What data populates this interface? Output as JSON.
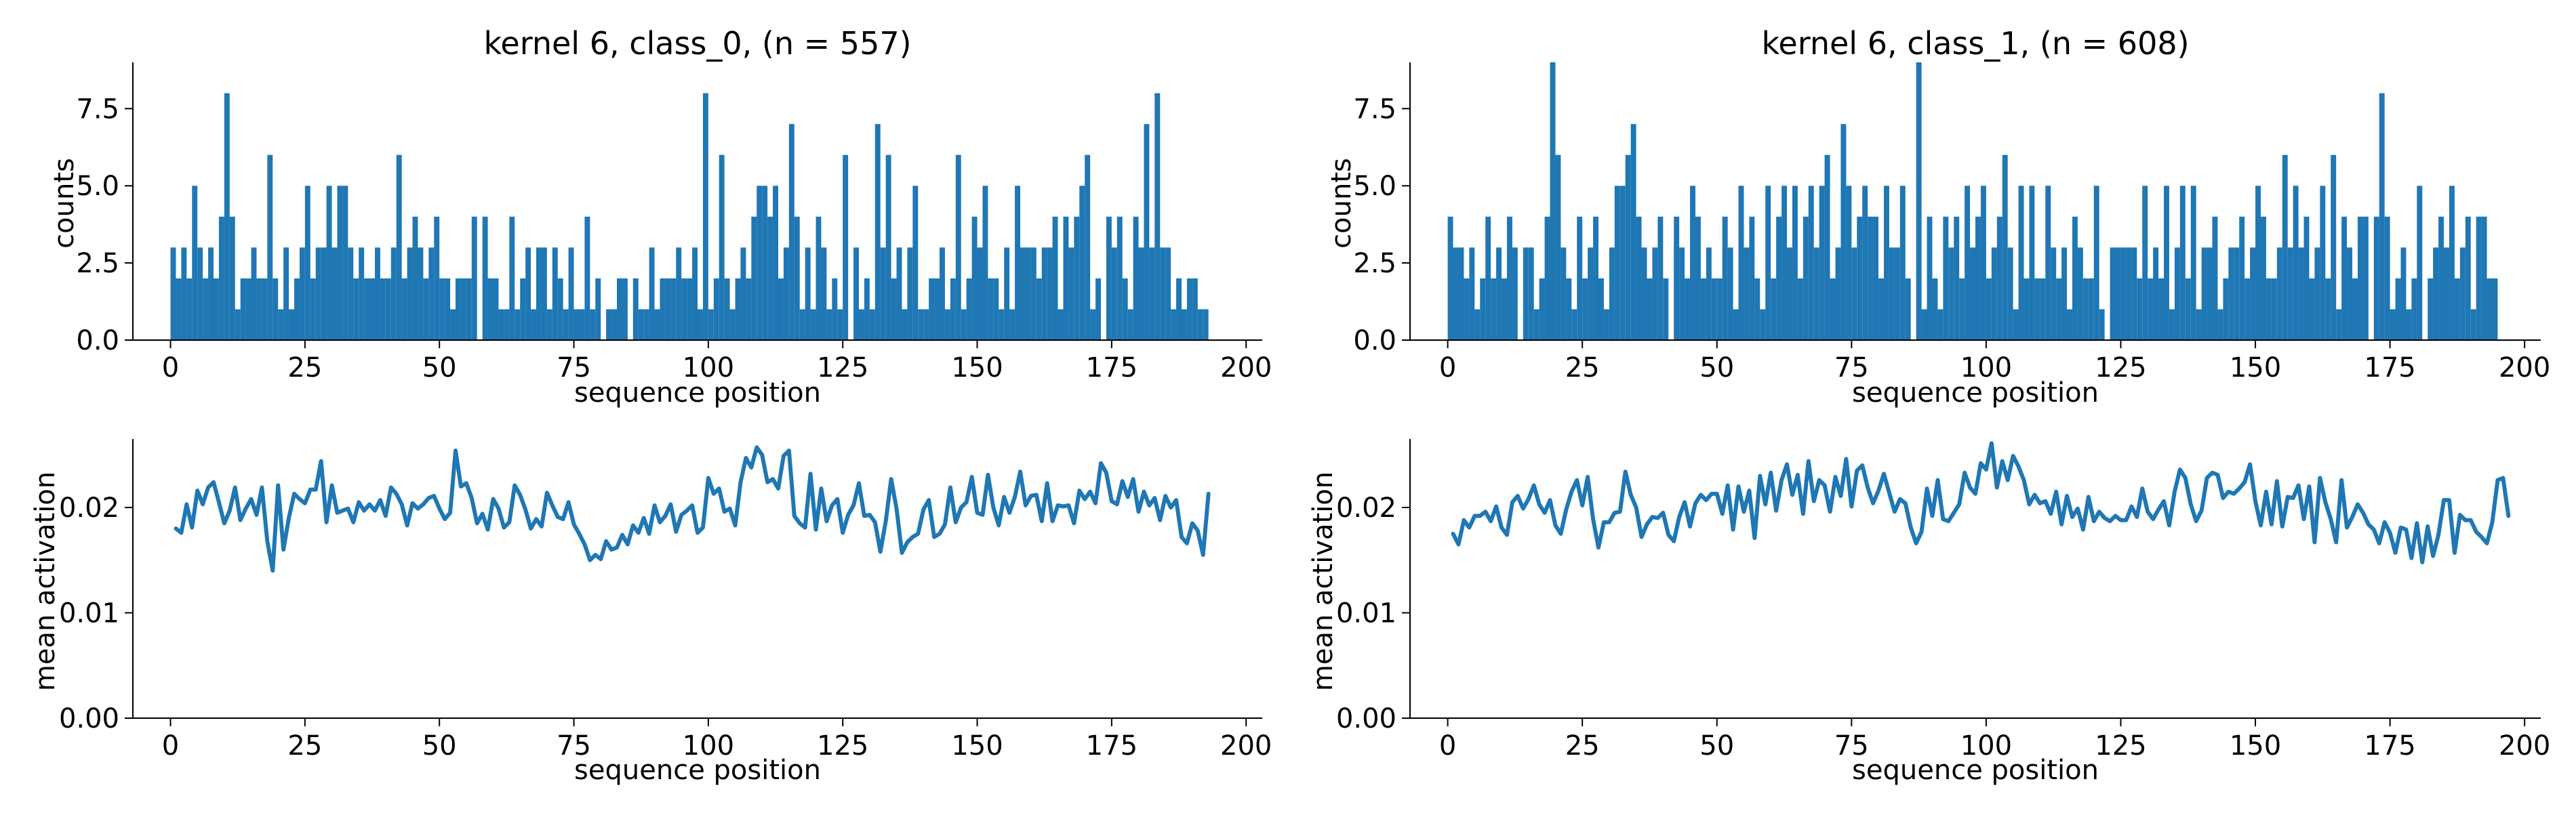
{
  "colors": {
    "series": "#1f77b4",
    "axis": "#000000"
  },
  "chart_data": [
    {
      "type": "bar",
      "title": "kernel 6, class_0, (n = 557)",
      "xlabel": "sequence position",
      "ylabel": "counts",
      "xlim": [
        -7,
        203
      ],
      "ylim": [
        0,
        9
      ],
      "xticks": [
        "0",
        "25",
        "50",
        "75",
        "100",
        "125",
        "150",
        "175",
        "200"
      ],
      "yticks": [
        "0.0",
        "2.5",
        "5.0",
        "7.5"
      ],
      "bin_width": 1,
      "x_start": 0,
      "values": [
        3,
        2,
        3,
        2,
        5,
        3,
        2,
        3,
        2,
        4,
        8,
        4,
        1,
        2,
        2,
        3,
        2,
        2,
        6,
        2,
        1,
        3,
        1,
        2,
        3,
        5,
        2,
        3,
        3,
        5,
        3,
        5,
        5,
        3,
        2,
        3,
        2,
        2,
        3,
        2,
        2,
        3,
        6,
        2,
        3,
        4,
        3,
        2,
        3,
        4,
        2,
        2,
        1,
        2,
        2,
        2,
        4,
        0,
        4,
        2,
        2,
        1,
        1,
        4,
        1,
        2,
        3,
        1,
        3,
        3,
        1,
        3,
        2,
        1,
        3,
        1,
        1,
        4,
        1,
        2,
        0,
        1,
        1,
        2,
        2,
        0,
        2,
        1,
        1,
        3,
        1,
        2,
        2,
        2,
        3,
        2,
        2,
        3,
        1,
        8,
        1,
        2,
        6,
        2,
        1,
        2,
        3,
        2,
        4,
        5,
        5,
        4,
        5,
        2,
        3,
        7,
        4,
        1,
        3,
        1,
        4,
        3,
        1,
        2,
        1,
        6,
        0,
        3,
        1,
        2,
        1,
        7,
        3,
        6,
        2,
        3,
        1,
        3,
        5,
        1,
        1,
        2,
        2,
        3,
        1,
        2,
        6,
        1,
        2,
        4,
        3,
        5,
        2,
        2,
        1,
        3,
        1,
        5,
        3,
        3,
        3,
        2,
        3,
        3,
        4,
        1,
        4,
        3,
        4,
        5,
        6,
        1,
        2,
        0,
        4,
        3,
        4,
        2,
        1,
        4,
        3,
        7,
        3,
        8,
        3,
        3,
        1,
        2,
        1,
        2,
        2,
        1,
        1
      ]
    },
    {
      "type": "line",
      "title": "",
      "xlabel": "sequence position",
      "ylabel": "mean activation",
      "xlim": [
        -7,
        203
      ],
      "ylim": [
        0,
        0.0265
      ],
      "xticks": [
        "0",
        "25",
        "50",
        "75",
        "100",
        "125",
        "150",
        "175",
        "200"
      ],
      "yticks": [
        "0.00",
        "0.01",
        "0.02"
      ],
      "x_start": 1,
      "values": [
        0.018,
        0.0176,
        0.0203,
        0.0181,
        0.0216,
        0.0203,
        0.0219,
        0.0224,
        0.0205,
        0.0185,
        0.0197,
        0.0219,
        0.0188,
        0.0199,
        0.0208,
        0.0193,
        0.0219,
        0.0168,
        0.014,
        0.0221,
        0.016,
        0.019,
        0.0213,
        0.0208,
        0.0204,
        0.0217,
        0.0217,
        0.0244,
        0.0186,
        0.0221,
        0.0195,
        0.0197,
        0.0199,
        0.0186,
        0.0205,
        0.0197,
        0.0203,
        0.0197,
        0.0207,
        0.0192,
        0.0219,
        0.0213,
        0.0203,
        0.0183,
        0.0204,
        0.0199,
        0.0203,
        0.0209,
        0.0211,
        0.0199,
        0.0189,
        0.0195,
        0.0254,
        0.022,
        0.0223,
        0.0209,
        0.0185,
        0.0194,
        0.0179,
        0.0208,
        0.0199,
        0.0181,
        0.0186,
        0.0221,
        0.0212,
        0.0198,
        0.018,
        0.0189,
        0.0182,
        0.0214,
        0.0202,
        0.0191,
        0.0189,
        0.0205,
        0.0184,
        0.0175,
        0.0165,
        0.015,
        0.0155,
        0.0151,
        0.0168,
        0.016,
        0.0162,
        0.0174,
        0.0165,
        0.0183,
        0.0176,
        0.019,
        0.0175,
        0.0202,
        0.0186,
        0.0192,
        0.0203,
        0.0177,
        0.0193,
        0.0197,
        0.0202,
        0.0176,
        0.0181,
        0.0228,
        0.0213,
        0.0218,
        0.0196,
        0.0199,
        0.0183,
        0.0224,
        0.0247,
        0.0238,
        0.0257,
        0.025,
        0.0224,
        0.0227,
        0.0218,
        0.0249,
        0.0254,
        0.0192,
        0.0185,
        0.0181,
        0.0232,
        0.0179,
        0.0218,
        0.0187,
        0.0202,
        0.0208,
        0.0176,
        0.0193,
        0.0202,
        0.0223,
        0.0192,
        0.0193,
        0.0186,
        0.0158,
        0.0187,
        0.0227,
        0.0199,
        0.0157,
        0.0167,
        0.0172,
        0.0175,
        0.0198,
        0.0207,
        0.0172,
        0.0175,
        0.0184,
        0.0219,
        0.0186,
        0.02,
        0.0205,
        0.0229,
        0.0195,
        0.0193,
        0.0231,
        0.02,
        0.0183,
        0.021,
        0.0195,
        0.021,
        0.0234,
        0.0202,
        0.0211,
        0.0212,
        0.0187,
        0.0223,
        0.0187,
        0.0202,
        0.0201,
        0.0202,
        0.0185,
        0.0216,
        0.0208,
        0.0215,
        0.0204,
        0.0242,
        0.0233,
        0.0206,
        0.0203,
        0.0225,
        0.021,
        0.0227,
        0.0196,
        0.0215,
        0.0202,
        0.0209,
        0.0188,
        0.0211,
        0.02,
        0.0207,
        0.0172,
        0.0166,
        0.0185,
        0.0178,
        0.0155,
        0.0213
      ]
    },
    {
      "type": "bar",
      "title": "kernel 6, class_1, (n = 608)",
      "xlabel": "sequence position",
      "ylabel": "counts",
      "xlim": [
        -7,
        203
      ],
      "ylim": [
        0,
        9
      ],
      "xticks": [
        "0",
        "25",
        "50",
        "75",
        "100",
        "125",
        "150",
        "175",
        "200"
      ],
      "yticks": [
        "0.0",
        "2.5",
        "5.0",
        "7.5"
      ],
      "bin_width": 1,
      "x_start": 0,
      "values": [
        4,
        3,
        3,
        2,
        3,
        1,
        2,
        4,
        2,
        3,
        2,
        4,
        3,
        0,
        3,
        3,
        1,
        2,
        4,
        9,
        6,
        3,
        2,
        1,
        4,
        2,
        3,
        4,
        2,
        1,
        3,
        5,
        5,
        6,
        7,
        4,
        3,
        2,
        3,
        4,
        2,
        0,
        4,
        3,
        2,
        5,
        4,
        2,
        3,
        2,
        2,
        4,
        3,
        1,
        5,
        3,
        4,
        2,
        1,
        5,
        2,
        4,
        5,
        3,
        5,
        2,
        4,
        5,
        3,
        5,
        6,
        2,
        3,
        7,
        5,
        3,
        4,
        5,
        4,
        4,
        2,
        5,
        3,
        3,
        5,
        2,
        0,
        9,
        1,
        4,
        2,
        1,
        4,
        3,
        4,
        2,
        5,
        3,
        4,
        5,
        2,
        3,
        4,
        6,
        3,
        1,
        5,
        2,
        5,
        2,
        2,
        5,
        3,
        2,
        3,
        1,
        4,
        3,
        2,
        2,
        5,
        1,
        0,
        3,
        3,
        3,
        3,
        3,
        2,
        5,
        2,
        3,
        2,
        5,
        1,
        3,
        5,
        2,
        5,
        1,
        3,
        3,
        4,
        1,
        2,
        3,
        3,
        4,
        2,
        3,
        5,
        4,
        2,
        2,
        3,
        6,
        3,
        5,
        3,
        4,
        2,
        3,
        5,
        2,
        6,
        1,
        4,
        3,
        2,
        4,
        4,
        0,
        4,
        8,
        4,
        1,
        2,
        3,
        1,
        2,
        5,
        0,
        2,
        3,
        4,
        3,
        5,
        2,
        3,
        4,
        1,
        4,
        4,
        2,
        2
      ]
    },
    {
      "type": "line",
      "title": "",
      "xlabel": "sequence position",
      "ylabel": "mean activation",
      "xlim": [
        -7,
        203
      ],
      "ylim": [
        0,
        0.0265
      ],
      "xticks": [
        "0",
        "25",
        "50",
        "75",
        "100",
        "125",
        "150",
        "175",
        "200"
      ],
      "yticks": [
        "0.00",
        "0.01",
        "0.02"
      ],
      "x_start": 1,
      "values": [
        0.0175,
        0.0165,
        0.0188,
        0.0181,
        0.0192,
        0.0192,
        0.0196,
        0.0187,
        0.0201,
        0.0181,
        0.0174,
        0.0205,
        0.0211,
        0.0199,
        0.0208,
        0.0221,
        0.0203,
        0.0195,
        0.0207,
        0.0183,
        0.0175,
        0.0198,
        0.0215,
        0.0226,
        0.0202,
        0.0229,
        0.0189,
        0.0162,
        0.0186,
        0.0186,
        0.0195,
        0.0196,
        0.0234,
        0.0212,
        0.02,
        0.0172,
        0.0184,
        0.0191,
        0.019,
        0.0195,
        0.0174,
        0.0168,
        0.0191,
        0.0205,
        0.0182,
        0.0204,
        0.0212,
        0.0207,
        0.0213,
        0.0213,
        0.0194,
        0.0221,
        0.0179,
        0.022,
        0.0196,
        0.0216,
        0.0171,
        0.023,
        0.0203,
        0.0233,
        0.0197,
        0.0226,
        0.0241,
        0.0212,
        0.0231,
        0.0194,
        0.0244,
        0.0206,
        0.0226,
        0.0221,
        0.0196,
        0.0229,
        0.0211,
        0.0246,
        0.0201,
        0.0235,
        0.024,
        0.0219,
        0.0204,
        0.0216,
        0.0232,
        0.0214,
        0.0196,
        0.0208,
        0.0204,
        0.0181,
        0.0166,
        0.0177,
        0.0218,
        0.0192,
        0.0226,
        0.0189,
        0.0187,
        0.0195,
        0.0203,
        0.0233,
        0.0219,
        0.0213,
        0.0242,
        0.0236,
        0.0261,
        0.0219,
        0.0244,
        0.0226,
        0.0249,
        0.0239,
        0.0226,
        0.0203,
        0.0212,
        0.0204,
        0.0206,
        0.0194,
        0.0215,
        0.0184,
        0.0211,
        0.0191,
        0.0199,
        0.0179,
        0.021,
        0.0187,
        0.0196,
        0.019,
        0.0187,
        0.0192,
        0.0188,
        0.0188,
        0.0201,
        0.0191,
        0.0218,
        0.0196,
        0.0189,
        0.0198,
        0.0206,
        0.0183,
        0.0215,
        0.0236,
        0.0228,
        0.0203,
        0.0187,
        0.0197,
        0.0228,
        0.0233,
        0.0231,
        0.0209,
        0.0215,
        0.0213,
        0.0218,
        0.0224,
        0.0241,
        0.0206,
        0.0183,
        0.0215,
        0.0184,
        0.0225,
        0.0182,
        0.021,
        0.0209,
        0.0221,
        0.0189,
        0.022,
        0.0167,
        0.0228,
        0.0205,
        0.0189,
        0.0167,
        0.0226,
        0.0181,
        0.0191,
        0.0203,
        0.0195,
        0.0184,
        0.0179,
        0.0166,
        0.0186,
        0.0176,
        0.0157,
        0.0181,
        0.0179,
        0.0152,
        0.0185,
        0.0148,
        0.0182,
        0.0154,
        0.0174,
        0.0207,
        0.0207,
        0.0157,
        0.0193,
        0.0188,
        0.0188,
        0.0177,
        0.0172,
        0.0166,
        0.0186,
        0.0226,
        0.0228,
        0.0192
      ]
    }
  ]
}
